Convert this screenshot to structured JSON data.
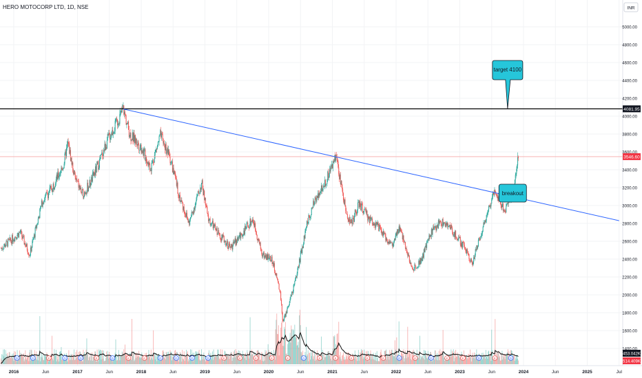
{
  "header": {
    "title": "HERO MOTOCORP LTD, 1D, NSE"
  },
  "currency_badge": "INR",
  "colors": {
    "up": "#26a69a",
    "down": "#ef5350",
    "trendline": "#2962ff",
    "horizontal_line": "#000000",
    "last_price_tag": "#f23645",
    "callout_fill": "#26c6da",
    "grid": "#f2f3f5"
  },
  "chart_data": {
    "type": "candlestick",
    "symbol": "HERO MOTOCORP LTD",
    "interval": "1D",
    "exchange": "NSE",
    "currency": "INR",
    "x_ticks": [
      "2016",
      "Jun",
      "2017",
      "Jun",
      "2018",
      "Jun",
      "2019",
      "Jun",
      "2020",
      "Jun",
      "2021",
      "Jun",
      "2022",
      "Jun",
      "2023",
      "Jun",
      "2024",
      "Jun",
      "2025",
      "Jul"
    ],
    "x_range": [
      2016.0,
      2025.5
    ],
    "y_ticks": [
      "5000.00",
      "4800.00",
      "4600.00",
      "4400.00",
      "4200.00",
      "4000.00",
      "3800.00",
      "3600.00",
      "3400.00",
      "3200.00",
      "3000.00",
      "2800.00",
      "2600.00",
      "2400.00",
      "2200.00",
      "2000.00",
      "1800.00",
      "1600.00",
      "1400.00"
    ],
    "y_range": [
      1300,
      5200
    ],
    "price_path": [
      [
        2015.8,
        2520
      ],
      [
        2016.1,
        2700
      ],
      [
        2016.25,
        2450
      ],
      [
        2016.45,
        3050
      ],
      [
        2016.6,
        3200
      ],
      [
        2016.78,
        3450
      ],
      [
        2016.85,
        3700
      ],
      [
        2016.95,
        3330
      ],
      [
        2017.08,
        3120
      ],
      [
        2017.2,
        3250
      ],
      [
        2017.35,
        3500
      ],
      [
        2017.48,
        3750
      ],
      [
        2017.6,
        3900
      ],
      [
        2017.72,
        4080
      ],
      [
        2017.82,
        3800
      ],
      [
        2018.0,
        3650
      ],
      [
        2018.15,
        3420
      ],
      [
        2018.3,
        3780
      ],
      [
        2018.45,
        3540
      ],
      [
        2018.6,
        3100
      ],
      [
        2018.75,
        2800
      ],
      [
        2018.95,
        3250
      ],
      [
        2019.05,
        2850
      ],
      [
        2019.2,
        2700
      ],
      [
        2019.4,
        2530
      ],
      [
        2019.6,
        2700
      ],
      [
        2019.75,
        2850
      ],
      [
        2019.9,
        2450
      ],
      [
        2020.05,
        2400
      ],
      [
        2020.18,
        2050
      ],
      [
        2020.22,
        1700
      ],
      [
        2020.3,
        1850
      ],
      [
        2020.45,
        2250
      ],
      [
        2020.6,
        2800
      ],
      [
        2020.75,
        3100
      ],
      [
        2020.88,
        3250
      ],
      [
        2021.0,
        3450
      ],
      [
        2021.05,
        3560
      ],
      [
        2021.12,
        3300
      ],
      [
        2021.22,
        2900
      ],
      [
        2021.3,
        2800
      ],
      [
        2021.42,
        3020
      ],
      [
        2021.58,
        2850
      ],
      [
        2021.7,
        2780
      ],
      [
        2021.82,
        2650
      ],
      [
        2021.95,
        2550
      ],
      [
        2022.05,
        2750
      ],
      [
        2022.15,
        2550
      ],
      [
        2022.25,
        2280
      ],
      [
        2022.4,
        2400
      ],
      [
        2022.55,
        2700
      ],
      [
        2022.7,
        2820
      ],
      [
        2022.85,
        2750
      ],
      [
        2022.95,
        2650
      ],
      [
        2023.1,
        2500
      ],
      [
        2023.2,
        2350
      ],
      [
        2023.3,
        2620
      ],
      [
        2023.45,
        2950
      ],
      [
        2023.55,
        3200
      ],
      [
        2023.65,
        3000
      ],
      [
        2023.72,
        2950
      ],
      [
        2023.78,
        3100
      ],
      [
        2023.85,
        3150
      ],
      [
        2023.88,
        3400
      ],
      [
        2023.92,
        3550
      ]
    ],
    "volume_max_label": "453.042K",
    "volume_avg_label": "514.409K",
    "annotations": {
      "trendline": {
        "from": [
          2017.72,
          4080
        ],
        "to": [
          2025.5,
          2830
        ]
      },
      "horizontal_line": {
        "price": 4081.95,
        "label": "4081.95"
      },
      "last_price": {
        "price": 3546.6,
        "label": "3546.60"
      },
      "target_callout": {
        "text": "target 4100",
        "x": 2023.75
      },
      "breakout_callout": {
        "text": "breakout",
        "x": 2023.83
      }
    }
  }
}
